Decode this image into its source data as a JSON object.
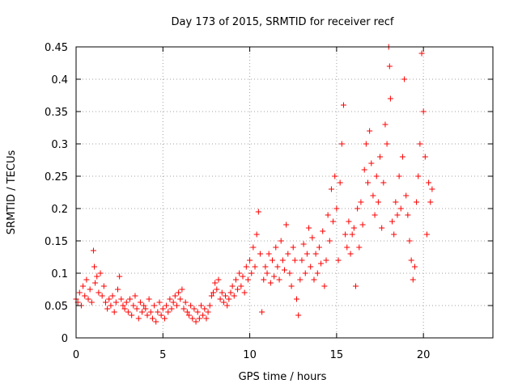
{
  "chart_data": {
    "type": "scatter",
    "title": "Day 173 of 2015, SRMTID for receiver recf",
    "xlabel": "GPS time / hours",
    "ylabel": "SRMTID / TECUs",
    "xlim": [
      0,
      24
    ],
    "ylim": [
      0,
      0.45
    ],
    "xticks": [
      0,
      5,
      10,
      15,
      20
    ],
    "yticks": [
      0,
      0.05,
      0.1,
      0.15,
      0.2,
      0.25,
      0.3,
      0.35,
      0.4,
      0.45
    ],
    "xtick_labels": [
      "0",
      "5",
      "10",
      "15",
      "20"
    ],
    "ytick_labels": [
      "0",
      "0.05",
      "0.1",
      "0.15",
      "0.2",
      "0.25",
      "0.3",
      "0.35",
      "0.4",
      "0.45"
    ],
    "grid": true,
    "marker": "plus",
    "marker_color": "#ff0000",
    "series": [
      {
        "points": [
          [
            0.0,
            0.06
          ],
          [
            0.1,
            0.055
          ],
          [
            0.2,
            0.07
          ],
          [
            0.3,
            0.05
          ],
          [
            0.4,
            0.08
          ],
          [
            0.5,
            0.065
          ],
          [
            0.6,
            0.09
          ],
          [
            0.7,
            0.06
          ],
          [
            0.8,
            0.075
          ],
          [
            0.9,
            0.055
          ],
          [
            1.0,
            0.135
          ],
          [
            1.05,
            0.11
          ],
          [
            1.1,
            0.085
          ],
          [
            1.2,
            0.095
          ],
          [
            1.3,
            0.07
          ],
          [
            1.4,
            0.1
          ],
          [
            1.5,
            0.065
          ],
          [
            1.6,
            0.08
          ],
          [
            1.7,
            0.055
          ],
          [
            1.8,
            0.045
          ],
          [
            1.9,
            0.06
          ],
          [
            2.0,
            0.05
          ],
          [
            2.1,
            0.065
          ],
          [
            2.2,
            0.04
          ],
          [
            2.3,
            0.055
          ],
          [
            2.4,
            0.075
          ],
          [
            2.5,
            0.095
          ],
          [
            2.6,
            0.06
          ],
          [
            2.7,
            0.05
          ],
          [
            2.8,
            0.045
          ],
          [
            2.9,
            0.055
          ],
          [
            3.0,
            0.04
          ],
          [
            3.1,
            0.06
          ],
          [
            3.2,
            0.035
          ],
          [
            3.3,
            0.05
          ],
          [
            3.4,
            0.065
          ],
          [
            3.5,
            0.045
          ],
          [
            3.6,
            0.03
          ],
          [
            3.7,
            0.055
          ],
          [
            3.8,
            0.04
          ],
          [
            3.9,
            0.05
          ],
          [
            4.0,
            0.045
          ],
          [
            4.1,
            0.035
          ],
          [
            4.2,
            0.06
          ],
          [
            4.3,
            0.04
          ],
          [
            4.4,
            0.03
          ],
          [
            4.5,
            0.05
          ],
          [
            4.6,
            0.025
          ],
          [
            4.7,
            0.04
          ],
          [
            4.8,
            0.055
          ],
          [
            4.9,
            0.035
          ],
          [
            5.0,
            0.045
          ],
          [
            5.1,
            0.03
          ],
          [
            5.2,
            0.05
          ],
          [
            5.3,
            0.04
          ],
          [
            5.4,
            0.06
          ],
          [
            5.5,
            0.045
          ],
          [
            5.6,
            0.055
          ],
          [
            5.7,
            0.065
          ],
          [
            5.8,
            0.05
          ],
          [
            5.9,
            0.07
          ],
          [
            6.0,
            0.06
          ],
          [
            6.1,
            0.075
          ],
          [
            6.2,
            0.045
          ],
          [
            6.3,
            0.055
          ],
          [
            6.4,
            0.04
          ],
          [
            6.5,
            0.035
          ],
          [
            6.6,
            0.05
          ],
          [
            6.7,
            0.03
          ],
          [
            6.8,
            0.045
          ],
          [
            6.9,
            0.025
          ],
          [
            7.0,
            0.04
          ],
          [
            7.1,
            0.03
          ],
          [
            7.2,
            0.05
          ],
          [
            7.3,
            0.035
          ],
          [
            7.4,
            0.045
          ],
          [
            7.5,
            0.03
          ],
          [
            7.6,
            0.04
          ],
          [
            7.7,
            0.05
          ],
          [
            7.8,
            0.065
          ],
          [
            7.9,
            0.07
          ],
          [
            8.0,
            0.085
          ],
          [
            8.1,
            0.075
          ],
          [
            8.2,
            0.09
          ],
          [
            8.3,
            0.06
          ],
          [
            8.4,
            0.07
          ],
          [
            8.5,
            0.055
          ],
          [
            8.6,
            0.065
          ],
          [
            8.7,
            0.05
          ],
          [
            8.8,
            0.06
          ],
          [
            8.9,
            0.07
          ],
          [
            9.0,
            0.08
          ],
          [
            9.1,
            0.065
          ],
          [
            9.2,
            0.09
          ],
          [
            9.3,
            0.075
          ],
          [
            9.4,
            0.1
          ],
          [
            9.5,
            0.08
          ],
          [
            9.6,
            0.095
          ],
          [
            9.7,
            0.07
          ],
          [
            9.8,
            0.11
          ],
          [
            9.9,
            0.09
          ],
          [
            10.0,
            0.12
          ],
          [
            10.1,
            0.1
          ],
          [
            10.2,
            0.14
          ],
          [
            10.3,
            0.11
          ],
          [
            10.4,
            0.16
          ],
          [
            10.5,
            0.195
          ],
          [
            10.6,
            0.13
          ],
          [
            10.7,
            0.04
          ],
          [
            10.8,
            0.09
          ],
          [
            10.9,
            0.11
          ],
          [
            11.0,
            0.1
          ],
          [
            11.1,
            0.13
          ],
          [
            11.2,
            0.085
          ],
          [
            11.3,
            0.12
          ],
          [
            11.4,
            0.095
          ],
          [
            11.5,
            0.14
          ],
          [
            11.6,
            0.11
          ],
          [
            11.7,
            0.09
          ],
          [
            11.8,
            0.15
          ],
          [
            11.9,
            0.12
          ],
          [
            12.0,
            0.105
          ],
          [
            12.1,
            0.175
          ],
          [
            12.2,
            0.13
          ],
          [
            12.3,
            0.1
          ],
          [
            12.4,
            0.08
          ],
          [
            12.5,
            0.14
          ],
          [
            12.6,
            0.12
          ],
          [
            12.7,
            0.06
          ],
          [
            12.8,
            0.035
          ],
          [
            12.9,
            0.09
          ],
          [
            13.0,
            0.12
          ],
          [
            13.1,
            0.145
          ],
          [
            13.2,
            0.1
          ],
          [
            13.3,
            0.13
          ],
          [
            13.4,
            0.17
          ],
          [
            13.5,
            0.11
          ],
          [
            13.6,
            0.155
          ],
          [
            13.7,
            0.09
          ],
          [
            13.8,
            0.13
          ],
          [
            13.9,
            0.1
          ],
          [
            14.0,
            0.14
          ],
          [
            14.1,
            0.115
          ],
          [
            14.2,
            0.165
          ],
          [
            14.3,
            0.08
          ],
          [
            14.4,
            0.12
          ],
          [
            14.5,
            0.19
          ],
          [
            14.6,
            0.15
          ],
          [
            14.7,
            0.23
          ],
          [
            14.8,
            0.18
          ],
          [
            14.9,
            0.25
          ],
          [
            15.0,
            0.2
          ],
          [
            15.1,
            0.12
          ],
          [
            15.2,
            0.24
          ],
          [
            15.3,
            0.3
          ],
          [
            15.4,
            0.36
          ],
          [
            15.5,
            0.16
          ],
          [
            15.6,
            0.14
          ],
          [
            15.7,
            0.18
          ],
          [
            15.8,
            0.13
          ],
          [
            15.9,
            0.16
          ],
          [
            16.0,
            0.17
          ],
          [
            16.1,
            0.08
          ],
          [
            16.2,
            0.2
          ],
          [
            16.3,
            0.14
          ],
          [
            16.4,
            0.21
          ],
          [
            16.5,
            0.175
          ],
          [
            16.6,
            0.26
          ],
          [
            16.7,
            0.3
          ],
          [
            16.8,
            0.24
          ],
          [
            16.9,
            0.32
          ],
          [
            17.0,
            0.27
          ],
          [
            17.1,
            0.22
          ],
          [
            17.2,
            0.19
          ],
          [
            17.3,
            0.25
          ],
          [
            17.4,
            0.21
          ],
          [
            17.5,
            0.28
          ],
          [
            17.6,
            0.17
          ],
          [
            17.7,
            0.24
          ],
          [
            17.8,
            0.33
          ],
          [
            17.9,
            0.3
          ],
          [
            18.0,
            0.45
          ],
          [
            18.05,
            0.42
          ],
          [
            18.1,
            0.37
          ],
          [
            18.2,
            0.18
          ],
          [
            18.3,
            0.16
          ],
          [
            18.4,
            0.21
          ],
          [
            18.5,
            0.19
          ],
          [
            18.6,
            0.25
          ],
          [
            18.7,
            0.2
          ],
          [
            18.8,
            0.28
          ],
          [
            18.9,
            0.4
          ],
          [
            19.0,
            0.22
          ],
          [
            19.1,
            0.19
          ],
          [
            19.2,
            0.15
          ],
          [
            19.3,
            0.12
          ],
          [
            19.4,
            0.09
          ],
          [
            19.5,
            0.11
          ],
          [
            19.6,
            0.21
          ],
          [
            19.7,
            0.25
          ],
          [
            19.8,
            0.3
          ],
          [
            19.9,
            0.44
          ],
          [
            20.0,
            0.35
          ],
          [
            20.1,
            0.28
          ],
          [
            20.2,
            0.16
          ],
          [
            20.3,
            0.24
          ],
          [
            20.4,
            0.21
          ],
          [
            20.5,
            0.23
          ]
        ]
      }
    ]
  }
}
